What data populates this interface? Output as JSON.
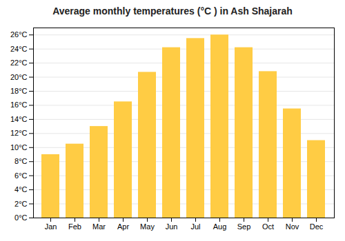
{
  "chart_data": {
    "type": "bar",
    "title": "Average monthly temperatures (°C ) in Ash Shajarah",
    "categories": [
      "Jan",
      "Feb",
      "Mar",
      "Apr",
      "May",
      "Jun",
      "Jul",
      "Aug",
      "Sep",
      "Oct",
      "Nov",
      "Dec"
    ],
    "values": [
      9.0,
      10.5,
      13.0,
      16.5,
      20.7,
      24.2,
      25.5,
      26.0,
      24.2,
      20.8,
      15.5,
      11.0
    ],
    "color": "#FFCC44",
    "ylim": [
      0,
      27
    ],
    "yticks": [
      {
        "value": 0,
        "label": "0°C"
      },
      {
        "value": 2,
        "label": "2°C"
      },
      {
        "value": 4,
        "label": "4°C"
      },
      {
        "value": 6,
        "label": "6°C"
      },
      {
        "value": 8,
        "label": "8°C"
      },
      {
        "value": 10,
        "label": "10°C"
      },
      {
        "value": 12,
        "label": "12°C"
      },
      {
        "value": 14,
        "label": "14°C"
      },
      {
        "value": 16,
        "label": "16°C"
      },
      {
        "value": 18,
        "label": "18°C"
      },
      {
        "value": 20,
        "label": "20°C"
      },
      {
        "value": 22,
        "label": "22°C"
      },
      {
        "value": 24,
        "label": "24°C"
      },
      {
        "value": 26,
        "label": "26°C"
      }
    ],
    "grid": true
  }
}
